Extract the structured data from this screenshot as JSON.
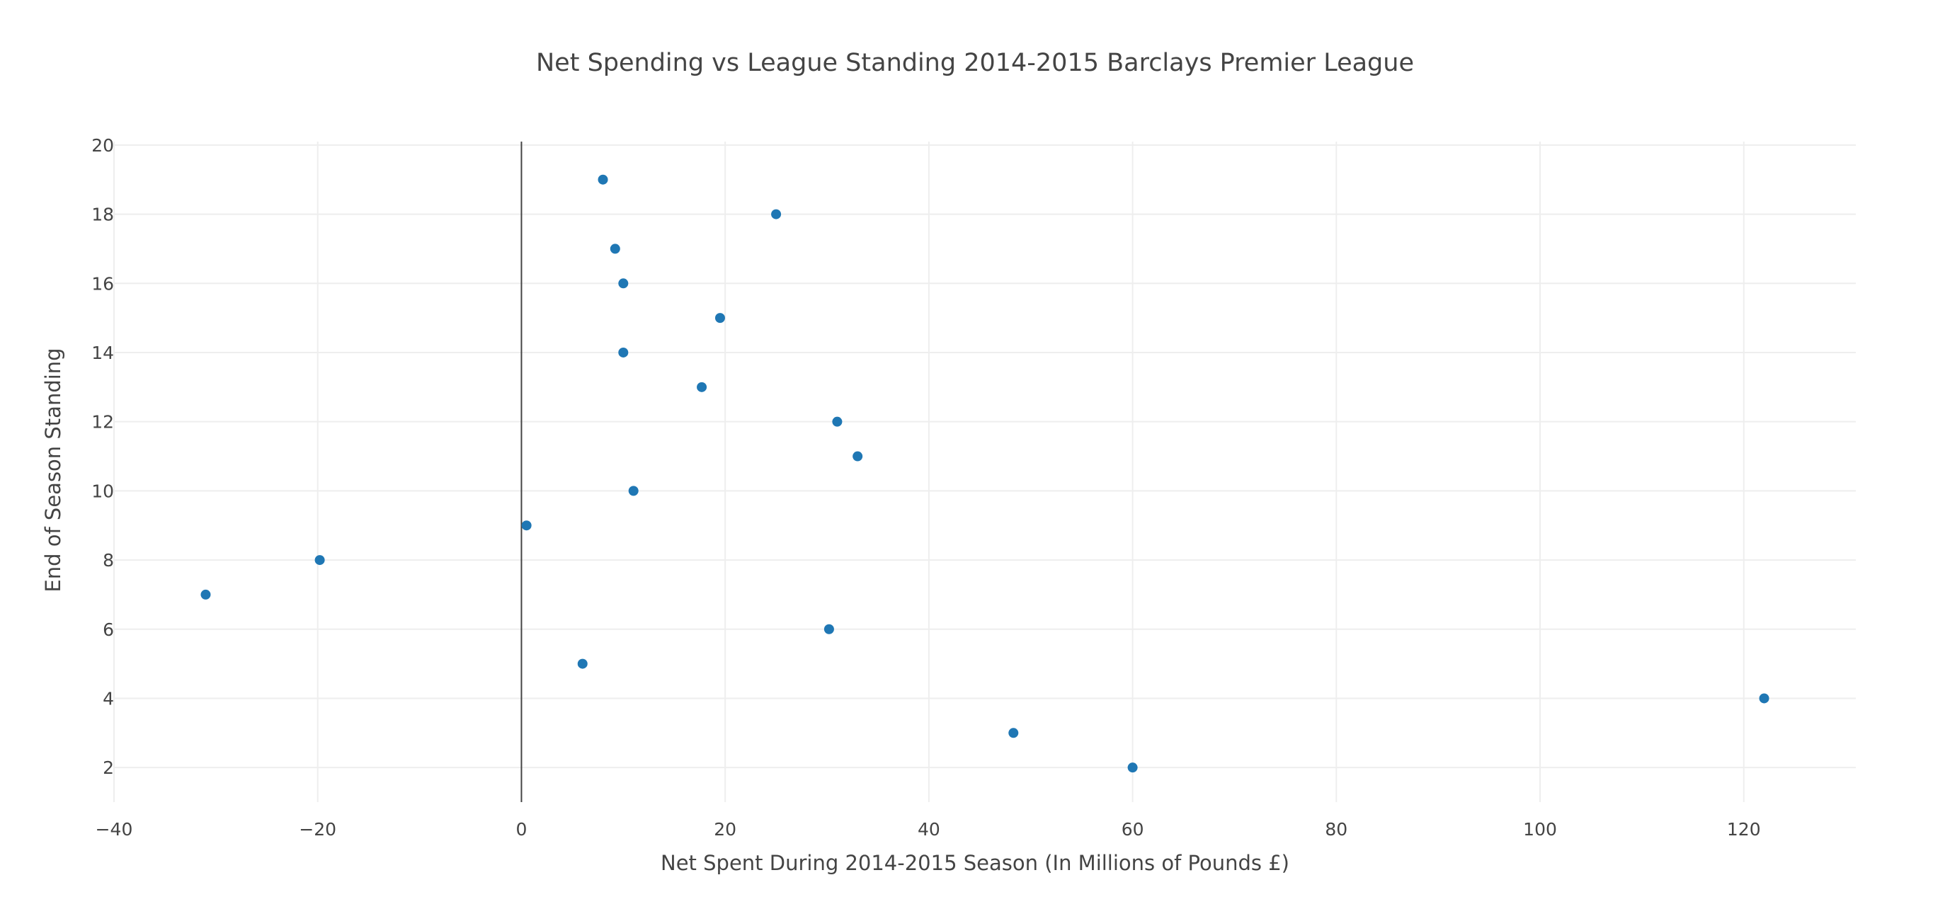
{
  "chart_data": {
    "type": "scatter",
    "title": "Net Spending vs League Standing 2014-2015 Barclays Premier League",
    "xlabel": "Net Spent During 2014-2015 Season (In Millions of Pounds £)",
    "ylabel": "End of Season Standing",
    "xlim": [
      -40,
      131
    ],
    "ylim": [
      1,
      20.1
    ],
    "x_ticks": [
      -40,
      -20,
      0,
      20,
      40,
      60,
      80,
      100,
      120
    ],
    "x_tick_labels": [
      "−40",
      "−20",
      "0",
      "20",
      "40",
      "60",
      "80",
      "100",
      "120"
    ],
    "y_ticks": [
      2,
      4,
      6,
      8,
      10,
      12,
      14,
      16,
      18,
      20
    ],
    "y_tick_labels": [
      "2",
      "4",
      "6",
      "8",
      "10",
      "12",
      "14",
      "16",
      "18",
      "20"
    ],
    "grid": true,
    "zero_line_x": true,
    "marker_color": "#1f77b4",
    "series": [
      {
        "x": [
          8,
          25,
          9.2,
          10,
          19.5,
          10,
          17.7,
          31,
          33,
          11,
          0.5,
          -19.8,
          -31,
          30.2,
          6,
          122,
          48.3,
          60
        ],
        "y": [
          19,
          18,
          17,
          16,
          15,
          14,
          13,
          12,
          11,
          10,
          9,
          8,
          7,
          6,
          5,
          4,
          3,
          2
        ]
      }
    ]
  }
}
